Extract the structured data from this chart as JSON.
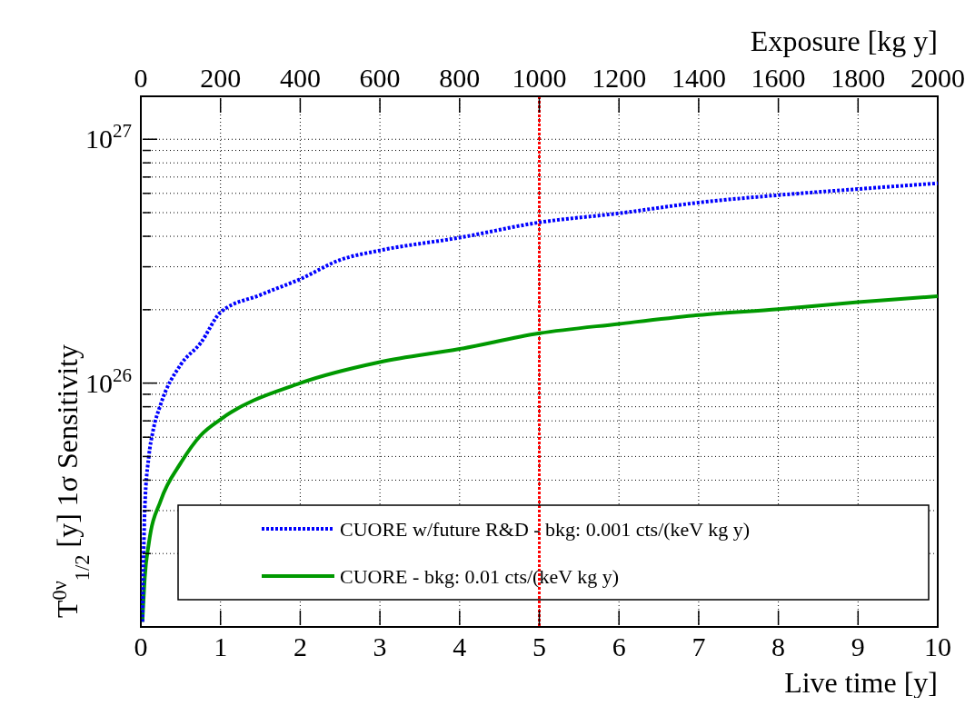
{
  "chart_data": {
    "type": "line",
    "xlabel": "Live time [y]",
    "x2label": "Exposure [kg y]",
    "ylabel": "T$^{0ν}$$_{1/2}$ [y]   1σ  Sensitivity",
    "x": [
      0.02,
      0.05,
      0.1,
      0.15,
      0.25,
      0.5,
      0.75,
      1,
      1.5,
      2,
      2.5,
      3,
      4,
      5,
      6,
      7,
      8,
      9,
      10
    ],
    "series": [
      {
        "name": "CUORE w/future R&D - bkg: 0.001 cts/(keV kg y)",
        "color": "#0000ff",
        "line_style": "dotted",
        "values": [
          1.05e+25,
          3.1e+25,
          5e+25,
          6.3e+25,
          8.2e+25,
          1.19e+26,
          1.46e+26,
          1.95e+26,
          2.3e+26,
          2.67e+26,
          3.2e+26,
          3.5e+26,
          3.95e+26,
          4.56e+26,
          4.97e+26,
          5.5e+26,
          5.9e+26,
          6.25e+26,
          6.6e+26
        ]
      },
      {
        "name": "CUORE - bkg: 0.01 cts/(keV kg y)",
        "color": "#009900",
        "line_style": "solid",
        "x": [
          0.02,
          0.05,
          0.1,
          0.25,
          0.5,
          0.75,
          1,
          2,
          3,
          4,
          5,
          6,
          7,
          8,
          9,
          10
        ],
        "values": [
          1.05e+25,
          1.6e+25,
          2.2e+25,
          3.3e+25,
          4.7e+25,
          6.1e+25,
          7.1e+25,
          1e+26,
          1.22e+26,
          1.38e+26,
          1.6e+26,
          1.75e+26,
          1.9e+26,
          2.01e+26,
          2.15e+26,
          2.27e+26
        ]
      }
    ],
    "xlim": [
      0,
      10
    ],
    "xticks": [
      0,
      1,
      2,
      3,
      4,
      5,
      6,
      7,
      8,
      9,
      10
    ],
    "x2lim": [
      0,
      2000
    ],
    "x2ticks": [
      0,
      200,
      400,
      600,
      800,
      1000,
      1200,
      1400,
      1600,
      1800,
      2000
    ],
    "log": "y",
    "ylim": [
      1e+25,
      1.5e+27
    ],
    "yticks": [
      {
        "value": 2e+25,
        "label": null
      },
      {
        "value": 3e+25,
        "label": null
      },
      {
        "value": 4e+25,
        "label": null
      },
      {
        "value": 5e+25,
        "label": null
      },
      {
        "value": 6e+25,
        "label": null
      },
      {
        "value": 7e+25,
        "label": null
      },
      {
        "value": 8e+25,
        "label": null
      },
      {
        "value": 9e+25,
        "label": null
      },
      {
        "value": 1e+26,
        "label": "10$^{26}$"
      },
      {
        "value": 2e+26,
        "label": null
      },
      {
        "value": 3e+26,
        "label": null
      },
      {
        "value": 4e+26,
        "label": null
      },
      {
        "value": 5e+26,
        "label": null
      },
      {
        "value": 6e+26,
        "label": null
      },
      {
        "value": 7e+26,
        "label": null
      },
      {
        "value": 8e+26,
        "label": null
      },
      {
        "value": 9e+26,
        "label": null
      },
      {
        "value": 1e+27,
        "label": "10$^{27}$"
      }
    ],
    "ref_lines": [
      {
        "axis": "x",
        "value": 5,
        "color": "#ff0000",
        "line_style": "dotted"
      }
    ],
    "grid": true,
    "legend": "bottom right"
  }
}
